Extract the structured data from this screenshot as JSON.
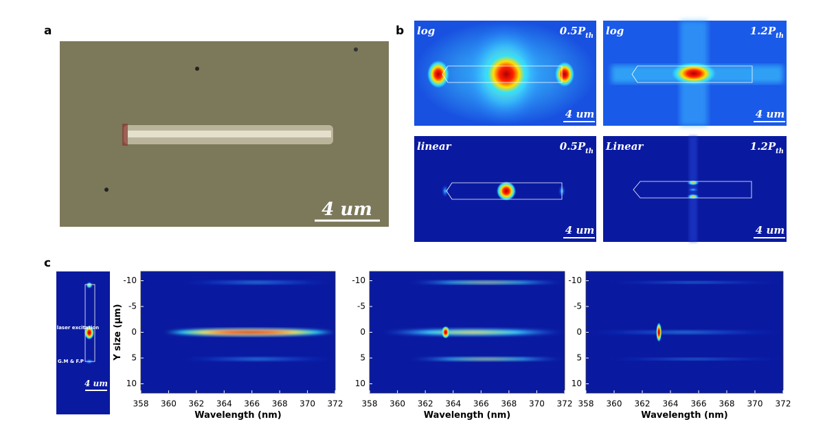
{
  "panel_a": {
    "label": "a",
    "scale_bar": "4 um"
  },
  "panel_b": {
    "label": "b",
    "images": [
      {
        "scale": "log",
        "power": "0.5P",
        "power_subscript": "th",
        "scale_bar": "4 um"
      },
      {
        "scale": "log",
        "power": "1.2P",
        "power_subscript": "th",
        "scale_bar": "4 um"
      },
      {
        "scale": "linear",
        "power": "0.5P",
        "power_subscript": "th",
        "scale_bar": "4 um"
      },
      {
        "scale": "Linear",
        "power": "1.2P",
        "power_subscript": "th",
        "scale_bar": "4 um"
      }
    ]
  },
  "panel_c": {
    "label": "c",
    "inset": {
      "excitation": "Local laser excitation",
      "mode": "G.M & F.P",
      "scale_bar": "4 um"
    },
    "spectra": {
      "x_label": "Wavelength (nm)",
      "y_label": "Y size (μm)",
      "xlim": [
        358,
        372
      ],
      "xticks": [
        358,
        360,
        362,
        364,
        366,
        368,
        370,
        372
      ],
      "ylim": [
        -11.8,
        11.8
      ],
      "yticks": [
        -10,
        -5,
        0,
        5,
        10
      ],
      "panels": 3
    }
  }
}
